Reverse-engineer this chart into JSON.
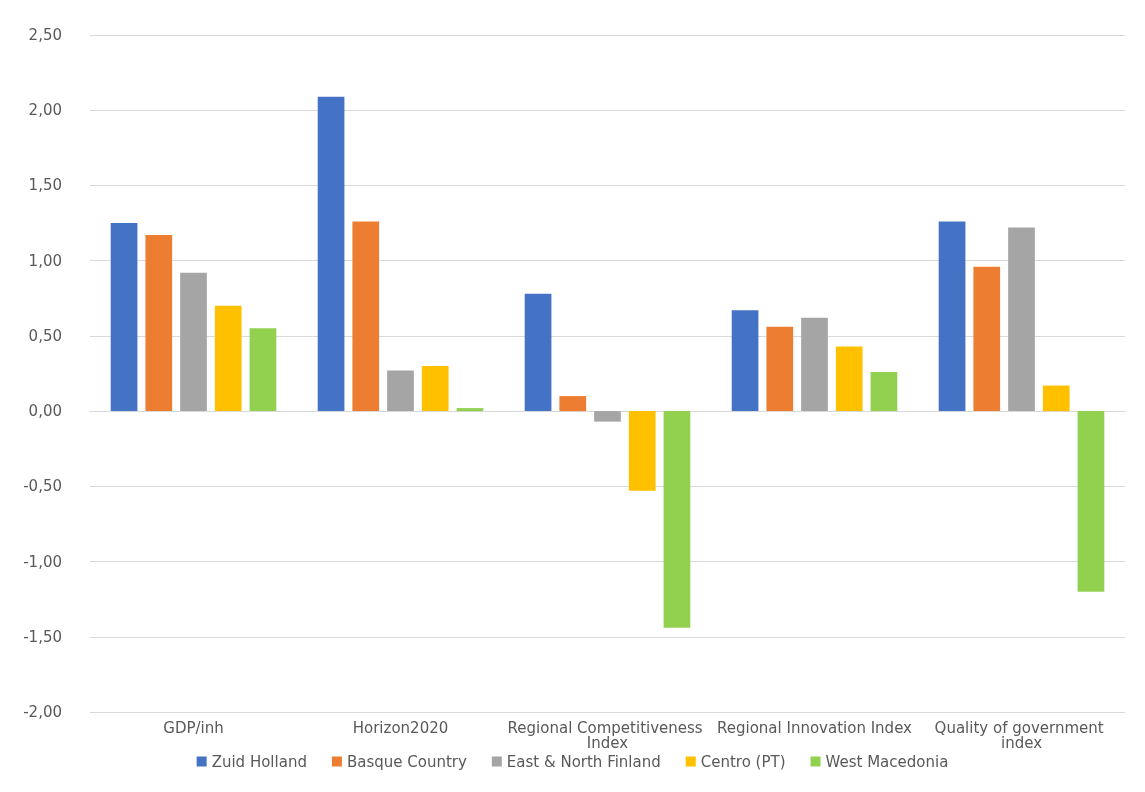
{
  "chart_data": {
    "type": "bar",
    "categories": [
      "GDP/inh",
      "Horizon2020",
      "Regional Competitiveness Index",
      "Regional Innovation Index",
      "Quality of government index"
    ],
    "series": [
      {
        "name": "Zuid Holland",
        "color": "#4472c4",
        "values": [
          1.25,
          2.09,
          0.78,
          0.67,
          1.26
        ]
      },
      {
        "name": "Basque Country",
        "color": "#ed7d31",
        "values": [
          1.17,
          1.26,
          0.1,
          0.56,
          0.96
        ]
      },
      {
        "name": "East & North Finland",
        "color": "#a5a5a5",
        "values": [
          0.92,
          0.27,
          -0.07,
          0.62,
          1.22
        ]
      },
      {
        "name": "Centro (PT)",
        "color": "#ffc000",
        "values": [
          0.7,
          0.3,
          -0.53,
          0.43,
          0.17
        ]
      },
      {
        "name": "West Macedonia",
        "color": "#92d050",
        "values": [
          0.55,
          0.02,
          -1.44,
          0.26,
          -1.2
        ]
      }
    ],
    "ylim": [
      -2,
      2.5
    ],
    "yticks": [
      {
        "value": -2,
        "label": "-2,00"
      },
      {
        "value": -1.5,
        "label": "-1,50"
      },
      {
        "value": -1,
        "label": "-1,00"
      },
      {
        "value": -0.5,
        "label": "-0,50"
      },
      {
        "value": 0,
        "label": "0,00"
      },
      {
        "value": 0.5,
        "label": "0,50"
      },
      {
        "value": 1,
        "label": "1,00"
      },
      {
        "value": 1.5,
        "label": "1,50"
      },
      {
        "value": 2,
        "label": "2,00"
      },
      {
        "value": 2.5,
        "label": "2,50"
      }
    ],
    "grid": "y",
    "legend": "bottom"
  }
}
